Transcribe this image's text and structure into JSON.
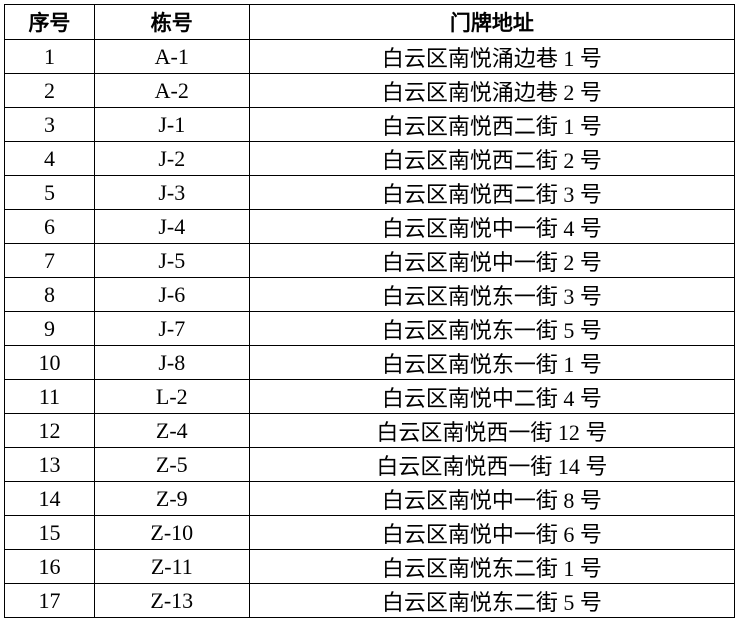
{
  "table": {
    "header": [
      "序号",
      "栋号",
      "门牌地址"
    ],
    "rows": [
      [
        "1",
        "A-1",
        "白云区南悦涌边巷 1 号"
      ],
      [
        "2",
        "A-2",
        "白云区南悦涌边巷 2 号"
      ],
      [
        "3",
        "J-1",
        "白云区南悦西二街 1 号"
      ],
      [
        "4",
        "J-2",
        "白云区南悦西二街 2 号"
      ],
      [
        "5",
        "J-3",
        "白云区南悦西二街 3 号"
      ],
      [
        "6",
        "J-4",
        "白云区南悦中一街 4 号"
      ],
      [
        "7",
        "J-5",
        "白云区南悦中一街 2 号"
      ],
      [
        "8",
        "J-6",
        "白云区南悦东一街 3 号"
      ],
      [
        "9",
        "J-7",
        "白云区南悦东一街 5 号"
      ],
      [
        "10",
        "J-8",
        "白云区南悦东一街 1 号"
      ],
      [
        "11",
        "L-2",
        "白云区南悦中二街 4 号"
      ],
      [
        "12",
        "Z-4",
        "白云区南悦西一街 12 号"
      ],
      [
        "13",
        "Z-5",
        "白云区南悦西一街 14 号"
      ],
      [
        "14",
        "Z-9",
        "白云区南悦中一街 8 号"
      ],
      [
        "15",
        "Z-10",
        "白云区南悦中一街 6 号"
      ],
      [
        "16",
        "Z-11",
        "白云区南悦东二街 1 号"
      ],
      [
        "17",
        "Z-13",
        "白云区南悦东二街 5 号"
      ]
    ]
  }
}
